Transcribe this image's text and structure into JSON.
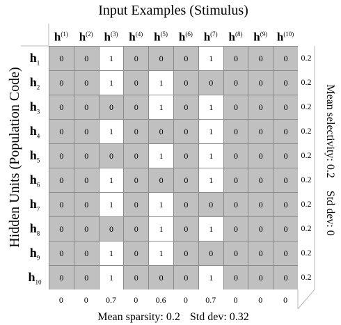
{
  "title": "Input Examples (Stimulus)",
  "y_label": "Hidden Units (Population Code)",
  "right_label": {
    "selectivity": "Mean selectivity: 0.2",
    "std": "Std dev: 0"
  },
  "bottom_label": {
    "sparsity": "Mean sparsity: 0.2",
    "std": "Std dev: 0.32"
  },
  "columns": [
    {
      "base": "h",
      "sup": "(1)"
    },
    {
      "base": "h",
      "sup": "(2)"
    },
    {
      "base": "h",
      "sup": "(3)"
    },
    {
      "base": "h",
      "sup": "(4)"
    },
    {
      "base": "h",
      "sup": "(5)"
    },
    {
      "base": "h",
      "sup": "(6)"
    },
    {
      "base": "h",
      "sup": "(7)"
    },
    {
      "base": "h",
      "sup": "(8)"
    },
    {
      "base": "h",
      "sup": "(9)"
    },
    {
      "base": "h",
      "sup": "(10)"
    }
  ],
  "rows": [
    {
      "base": "h",
      "sub": "1"
    },
    {
      "base": "h",
      "sub": "2"
    },
    {
      "base": "h",
      "sub": "3"
    },
    {
      "base": "h",
      "sub": "4"
    },
    {
      "base": "h",
      "sub": "5"
    },
    {
      "base": "h",
      "sub": "6"
    },
    {
      "base": "h",
      "sub": "7"
    },
    {
      "base": "h",
      "sub": "8"
    },
    {
      "base": "h",
      "sub": "9"
    },
    {
      "base": "h",
      "sub": "10"
    }
  ],
  "matrix": [
    [
      0,
      0,
      1,
      0,
      0,
      0,
      1,
      0,
      0,
      0
    ],
    [
      0,
      0,
      1,
      0,
      1,
      0,
      0,
      0,
      0,
      0
    ],
    [
      0,
      0,
      0,
      0,
      1,
      0,
      1,
      0,
      0,
      0
    ],
    [
      0,
      0,
      1,
      0,
      0,
      0,
      1,
      0,
      0,
      0
    ],
    [
      0,
      0,
      0,
      0,
      1,
      0,
      1,
      0,
      0,
      0
    ],
    [
      0,
      0,
      1,
      0,
      0,
      0,
      1,
      0,
      0,
      0
    ],
    [
      0,
      0,
      1,
      0,
      1,
      0,
      0,
      0,
      0,
      0
    ],
    [
      0,
      0,
      0,
      0,
      1,
      0,
      1,
      0,
      0,
      0
    ],
    [
      0,
      0,
      1,
      0,
      1,
      0,
      0,
      0,
      0,
      0
    ],
    [
      0,
      0,
      1,
      0,
      0,
      0,
      1,
      0,
      0,
      0
    ]
  ],
  "row_values": [
    "0.2",
    "0.2",
    "0.2",
    "0.2",
    "0.2",
    "0.2",
    "0.2",
    "0.2",
    "0.2",
    "0.2"
  ],
  "column_values": [
    "0",
    "0",
    "0.7",
    "0",
    "0.6",
    "0",
    "0.7",
    "0",
    "0",
    "0"
  ],
  "colors": {
    "off": "#c0c0c0",
    "on": "#ffffff",
    "grid_line": "#8a8a8a"
  }
}
